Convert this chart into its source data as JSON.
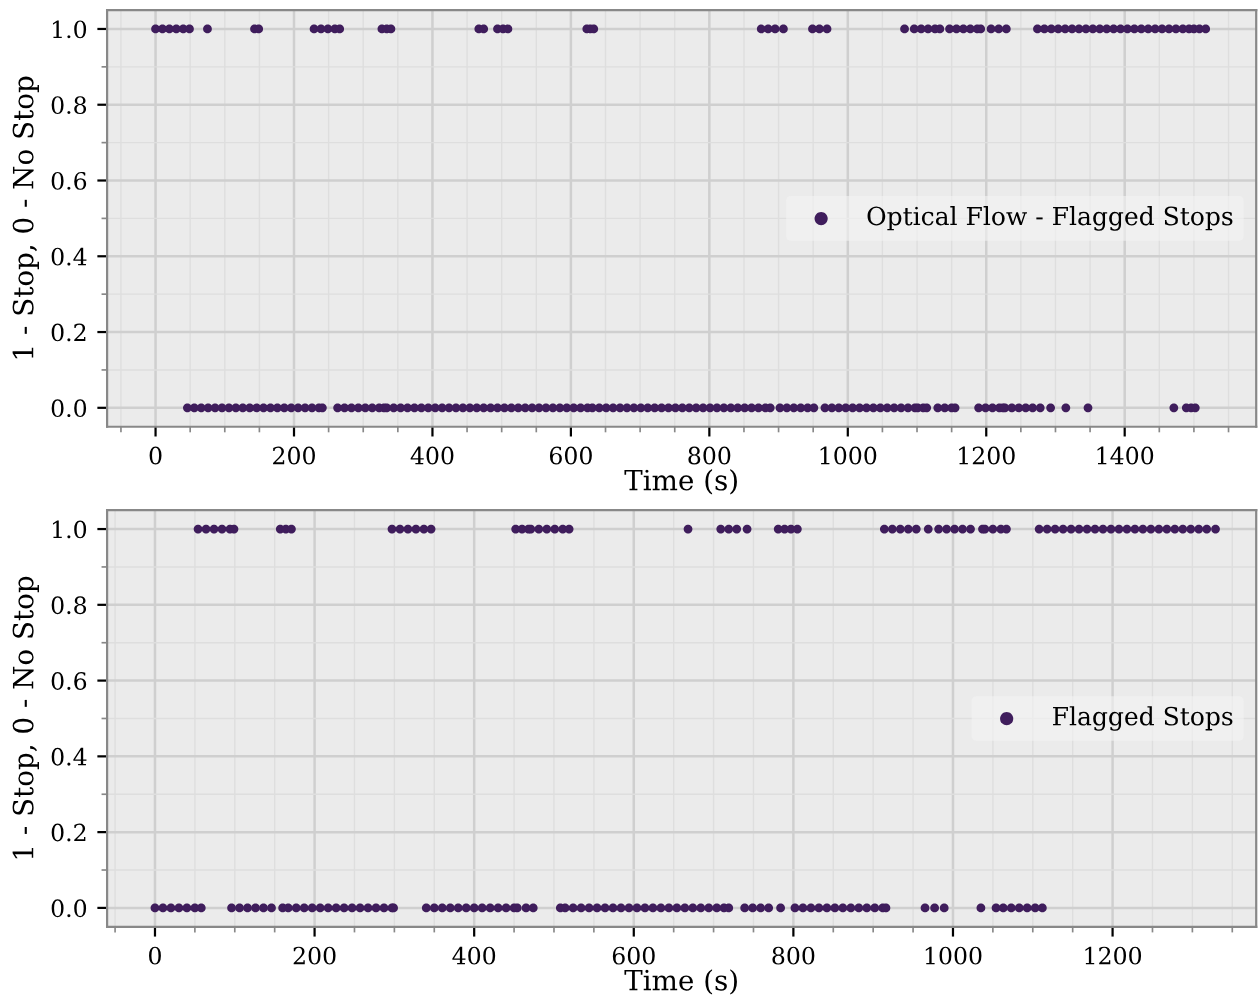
{
  "chart_data": [
    {
      "type": "scatter",
      "xlabel": "Time (s)",
      "ylabel": "1 - Stop, 0 - No Stop",
      "xlim": [
        -70,
        1590
      ],
      "ylim": [
        -0.05,
        1.05
      ],
      "xticks": [
        0,
        200,
        400,
        600,
        800,
        1000,
        1200,
        1400
      ],
      "yticks": [
        {
          "value": 0,
          "label": "0.0"
        },
        {
          "value": 0.2,
          "label": "0.2"
        },
        {
          "value": 0.4,
          "label": "0.4"
        },
        {
          "value": 0.6,
          "label": "0.6"
        },
        {
          "value": 0.8,
          "label": "0.8"
        },
        {
          "value": 1,
          "label": "1.0"
        }
      ],
      "grid": true,
      "legend": "right",
      "marker": "circle",
      "series": [
        {
          "name": "Optical Flow - Flagged Stops",
          "color": "#3f1d5c",
          "x": [
            0,
            10,
            20,
            30,
            40,
            49,
            75,
            143,
            149,
            229,
            239,
            249,
            259,
            266,
            327,
            334,
            340,
            467,
            474,
            494,
            502,
            509,
            623,
            628,
            633,
            875,
            885,
            895,
            907,
            949,
            959,
            970,
            1082,
            1096,
            1106,
            1116,
            1126,
            1133,
            1147,
            1157,
            1167,
            1177,
            1187,
            1192,
            1207,
            1218,
            1229,
            1274,
            1284,
            1294,
            1304,
            1314,
            1324,
            1334,
            1344,
            1354,
            1364,
            1374,
            1384,
            1394,
            1404,
            1414,
            1424,
            1434,
            1444,
            1454,
            1464,
            1474,
            1484,
            1493,
            1500,
            1508,
            1517,
            46,
            56,
            66,
            76,
            86,
            96,
            106,
            116,
            126,
            136,
            146,
            156,
            166,
            176,
            186,
            196,
            206,
            216,
            226,
            236,
            241,
            263,
            273,
            283,
            293,
            303,
            313,
            323,
            330,
            334,
            344,
            354,
            364,
            374,
            384,
            394,
            404,
            414,
            424,
            434,
            444,
            454,
            464,
            474,
            484,
            494,
            504,
            514,
            524,
            534,
            544,
            554,
            564,
            574,
            584,
            594,
            604,
            614,
            624,
            631,
            641,
            651,
            661,
            671,
            681,
            691,
            701,
            711,
            721,
            731,
            741,
            751,
            761,
            771,
            781,
            791,
            801,
            811,
            821,
            831,
            841,
            851,
            861,
            871,
            881,
            888,
            902,
            912,
            922,
            932,
            942,
            951,
            967,
            977,
            987,
            997,
            1007,
            1017,
            1027,
            1037,
            1047,
            1057,
            1067,
            1077,
            1087,
            1097,
            1101,
            1109,
            1114,
            1130,
            1140,
            1150,
            1155,
            1189,
            1199,
            1209,
            1219,
            1224,
            1227,
            1237,
            1247,
            1257,
            1267,
            1278,
            1293,
            1315,
            1347,
            1471,
            1489,
            1496,
            1502
          ],
          "values": [
            1,
            1,
            1,
            1,
            1,
            1,
            1,
            1,
            1,
            1,
            1,
            1,
            1,
            1,
            1,
            1,
            1,
            1,
            1,
            1,
            1,
            1,
            1,
            1,
            1,
            1,
            1,
            1,
            1,
            1,
            1,
            1,
            1,
            1,
            1,
            1,
            1,
            1,
            1,
            1,
            1,
            1,
            1,
            1,
            1,
            1,
            1,
            1,
            1,
            1,
            1,
            1,
            1,
            1,
            1,
            1,
            1,
            1,
            1,
            1,
            1,
            1,
            1,
            1,
            1,
            1,
            1,
            1,
            1,
            1,
            1,
            1,
            1,
            0,
            0,
            0,
            0,
            0,
            0,
            0,
            0,
            0,
            0,
            0,
            0,
            0,
            0,
            0,
            0,
            0,
            0,
            0,
            0,
            0,
            0,
            0,
            0,
            0,
            0,
            0,
            0,
            0,
            0,
            0,
            0,
            0,
            0,
            0,
            0,
            0,
            0,
            0,
            0,
            0,
            0,
            0,
            0,
            0,
            0,
            0,
            0,
            0,
            0,
            0,
            0,
            0,
            0,
            0,
            0,
            0,
            0,
            0,
            0,
            0,
            0,
            0,
            0,
            0,
            0,
            0,
            0,
            0,
            0,
            0,
            0,
            0,
            0,
            0,
            0,
            0,
            0,
            0,
            0,
            0,
            0,
            0,
            0,
            0,
            0,
            0,
            0,
            0,
            0,
            0,
            0,
            0,
            0,
            0,
            0,
            0,
            0,
            0,
            0,
            0,
            0,
            0,
            0,
            0,
            0,
            0,
            0,
            0,
            0,
            0,
            0,
            0,
            0,
            0,
            0,
            0,
            0,
            0,
            0,
            0,
            0,
            0,
            0,
            0,
            0,
            0,
            0,
            0,
            0,
            0
          ]
        }
      ]
    },
    {
      "type": "scatter",
      "xlabel": "Time (s)",
      "ylabel": "1 - Stop, 0 - No Stop",
      "xlim": [
        -60,
        1380
      ],
      "ylim": [
        -0.05,
        1.05
      ],
      "xticks": [
        0,
        200,
        400,
        600,
        800,
        1000,
        1200
      ],
      "yticks": [
        {
          "value": 0,
          "label": "0.0"
        },
        {
          "value": 0.2,
          "label": "0.2"
        },
        {
          "value": 0.4,
          "label": "0.4"
        },
        {
          "value": 0.6,
          "label": "0.6"
        },
        {
          "value": 0.8,
          "label": "0.8"
        },
        {
          "value": 1,
          "label": "1.0"
        }
      ],
      "grid": true,
      "legend": "right",
      "marker": "circle",
      "series": [
        {
          "name": "Flagged Stops",
          "color": "#3f1d5c",
          "x": [
            54,
            64,
            74,
            84,
            94,
            99,
            157,
            164,
            171,
            297,
            307,
            317,
            327,
            337,
            346,
            452,
            460,
            468,
            471,
            481,
            491,
            501,
            511,
            519,
            668,
            709,
            719,
            729,
            742,
            781,
            789,
            797,
            805,
            914,
            924,
            934,
            944,
            954,
            969,
            982,
            992,
            1002,
            1012,
            1022,
            1037,
            1040,
            1050,
            1060,
            1067,
            1108,
            1118,
            1128,
            1138,
            1148,
            1158,
            1168,
            1178,
            1188,
            1198,
            1208,
            1218,
            1228,
            1238,
            1248,
            1258,
            1268,
            1278,
            1288,
            1298,
            1308,
            1318,
            1329,
            0,
            10,
            20,
            30,
            40,
            50,
            58,
            96,
            106,
            116,
            126,
            136,
            146,
            160,
            167,
            177,
            187,
            197,
            207,
            217,
            227,
            237,
            247,
            257,
            267,
            277,
            287,
            297,
            299,
            340,
            350,
            360,
            370,
            380,
            390,
            400,
            410,
            420,
            430,
            440,
            450,
            454,
            465,
            474,
            508,
            514,
            524,
            534,
            544,
            554,
            564,
            574,
            584,
            594,
            604,
            614,
            624,
            634,
            644,
            654,
            664,
            674,
            684,
            694,
            704,
            713,
            719,
            739,
            749,
            759,
            769,
            784,
            802,
            812,
            822,
            832,
            842,
            852,
            862,
            872,
            882,
            892,
            902,
            912,
            916,
            965,
            977,
            989,
            1035,
            1054,
            1063,
            1073,
            1083,
            1093,
            1103,
            1112
          ],
          "values": [
            1,
            1,
            1,
            1,
            1,
            1,
            1,
            1,
            1,
            1,
            1,
            1,
            1,
            1,
            1,
            1,
            1,
            1,
            1,
            1,
            1,
            1,
            1,
            1,
            1,
            1,
            1,
            1,
            1,
            1,
            1,
            1,
            1,
            1,
            1,
            1,
            1,
            1,
            1,
            1,
            1,
            1,
            1,
            1,
            1,
            1,
            1,
            1,
            1,
            1,
            1,
            1,
            1,
            1,
            1,
            1,
            1,
            1,
            1,
            1,
            1,
            1,
            1,
            1,
            1,
            1,
            1,
            1,
            1,
            1,
            1,
            1,
            0,
            0,
            0,
            0,
            0,
            0,
            0,
            0,
            0,
            0,
            0,
            0,
            0,
            0,
            0,
            0,
            0,
            0,
            0,
            0,
            0,
            0,
            0,
            0,
            0,
            0,
            0,
            0,
            0,
            0,
            0,
            0,
            0,
            0,
            0,
            0,
            0,
            0,
            0,
            0,
            0,
            0,
            0,
            0,
            0,
            0,
            0,
            0,
            0,
            0,
            0,
            0,
            0,
            0,
            0,
            0,
            0,
            0,
            0,
            0,
            0,
            0,
            0,
            0,
            0,
            0,
            0,
            0,
            0,
            0,
            0,
            0,
            0,
            0,
            0,
            0,
            0,
            0,
            0,
            0,
            0,
            0,
            0,
            0,
            0,
            0,
            0,
            0,
            0,
            0,
            0,
            0,
            0,
            0,
            0,
            0
          ]
        }
      ]
    }
  ]
}
